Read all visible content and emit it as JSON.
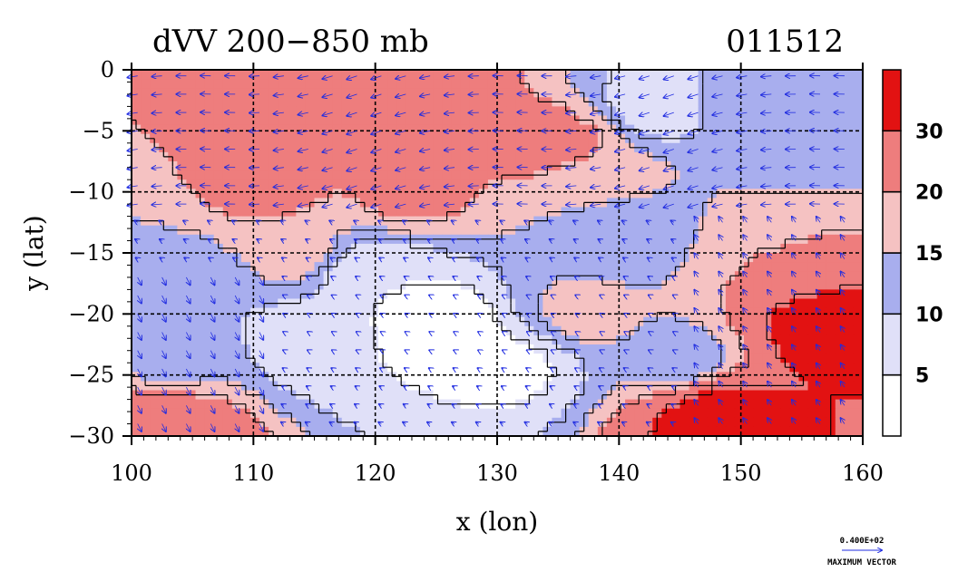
{
  "chart_data": {
    "type": "heatmap",
    "title": "dVV 200−850 mb",
    "subtitle": "011512",
    "xlabel": "x (lon)",
    "ylabel": "y (lat)",
    "xlim": [
      100,
      160
    ],
    "ylim": [
      -30,
      0
    ],
    "xticks": [
      "100",
      "110",
      "120",
      "130",
      "140",
      "150",
      "160"
    ],
    "yticks": [
      "0",
      "−5",
      "−10",
      "−15",
      "−20",
      "−25",
      "−30"
    ],
    "grid": true,
    "colorbar": {
      "levels": [
        0,
        5,
        10,
        15,
        20,
        30,
        40
      ],
      "labels": [
        "5",
        "10",
        "15",
        "20",
        "30"
      ],
      "colors": [
        "#ffffff",
        "#e0e0f8",
        "#a8aeee",
        "#f5c2c2",
        "#ee7d7d",
        "#e21212"
      ]
    },
    "field_centers": [
      {
        "lon": 113,
        "lat": -4,
        "value": 22
      },
      {
        "lon": 125,
        "lat": -4,
        "value": 24
      },
      {
        "lon": 135,
        "lat": -6,
        "value": 22
      },
      {
        "lon": 111,
        "lat": -10,
        "value": 21
      },
      {
        "lon": 123,
        "lat": -10,
        "value": 21
      },
      {
        "lon": 138,
        "lat": -9,
        "value": 18
      },
      {
        "lon": 150,
        "lat": -3,
        "value": 11
      },
      {
        "lon": 143,
        "lat": -3,
        "value": 8
      },
      {
        "lon": 125,
        "lat": -21,
        "value": 2
      },
      {
        "lon": 120,
        "lat": -17,
        "value": 5
      },
      {
        "lon": 131,
        "lat": -24,
        "value": 4
      },
      {
        "lon": 115,
        "lat": -22,
        "value": 7
      },
      {
        "lon": 105,
        "lat": -18,
        "value": 10
      },
      {
        "lon": 103,
        "lat": -24,
        "value": 14
      },
      {
        "lon": 102,
        "lat": -29,
        "value": 28
      },
      {
        "lon": 148,
        "lat": -28,
        "value": 34
      },
      {
        "lon": 157,
        "lat": -21,
        "value": 33
      },
      {
        "lon": 153,
        "lat": -15,
        "value": 20
      },
      {
        "lon": 137,
        "lat": -20,
        "value": 16
      },
      {
        "lon": 140,
        "lat": -13,
        "value": 11
      },
      {
        "lon": 145,
        "lat": -24,
        "value": 13
      },
      {
        "lon": 155,
        "lat": -6,
        "value": 13
      },
      {
        "lon": 113,
        "lat": -15,
        "value": 17
      }
    ],
    "vectors": {
      "label": "0.400E+02",
      "caption": "MAXIMUM VECTOR"
    }
  }
}
